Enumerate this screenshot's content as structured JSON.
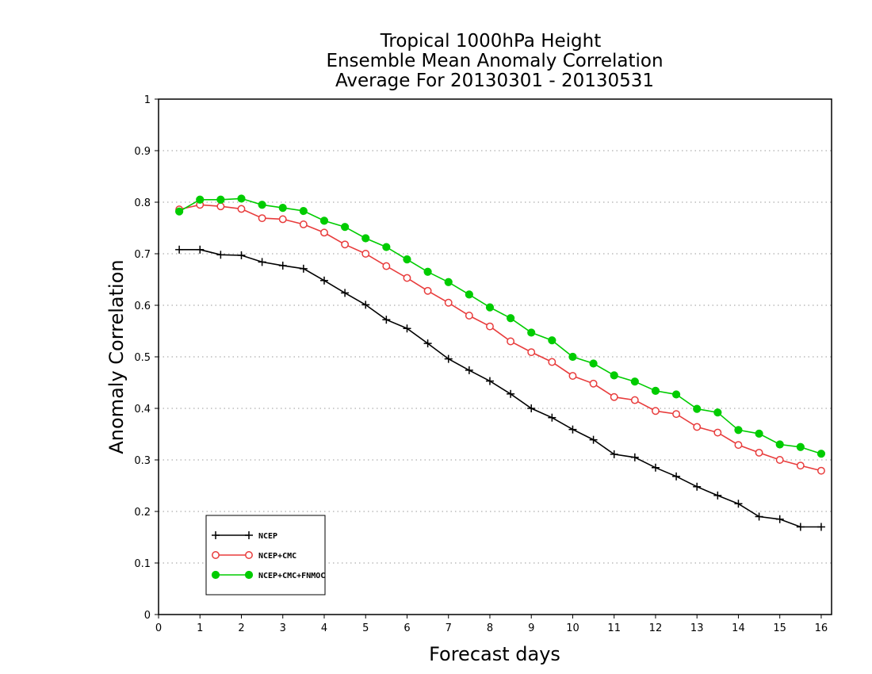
{
  "chart_data": {
    "type": "line",
    "title": [
      "Tropical 1000hPa Height",
      "Ensemble Mean Anomaly Correlation",
      "Average For 20130301 - 20130531"
    ],
    "xlabel": "Forecast days",
    "ylabel": "Anomaly Correlation",
    "xlim": [
      0,
      16.25
    ],
    "ylim": [
      0,
      1
    ],
    "xticks": [
      0,
      1,
      2,
      3,
      4,
      5,
      6,
      7,
      8,
      9,
      10,
      11,
      12,
      13,
      14,
      15,
      16
    ],
    "yticks": [
      0,
      0.1,
      0.2,
      0.3,
      0.4,
      0.5,
      0.6,
      0.7,
      0.8,
      0.9,
      1
    ],
    "ytick_labels": [
      "0",
      "0.1",
      "0.2",
      "0.3",
      "0.4",
      "0.5",
      "0.6",
      "0.7",
      "0.8",
      "0.9",
      "1"
    ],
    "grid": "horizontal dotted",
    "legend_position": "bottom-left",
    "x": [
      0.5,
      1,
      1.5,
      2,
      2.5,
      3,
      3.5,
      4,
      4.5,
      5,
      5.5,
      6,
      6.5,
      7,
      7.5,
      8,
      8.5,
      9,
      9.5,
      10,
      10.5,
      11,
      11.5,
      12,
      12.5,
      13,
      13.5,
      14,
      14.5,
      15,
      15.5,
      16
    ],
    "series": [
      {
        "name": "NCEP",
        "color": "#000000",
        "marker": "plus",
        "values": [
          0.708,
          0.708,
          0.698,
          0.697,
          0.684,
          0.677,
          0.671,
          0.648,
          0.624,
          0.601,
          0.572,
          0.555,
          0.526,
          0.496,
          0.474,
          0.453,
          0.428,
          0.4,
          0.382,
          0.359,
          0.339,
          0.311,
          0.305,
          0.285,
          0.268,
          0.248,
          0.231,
          0.215,
          0.19,
          0.185,
          0.17,
          0.17
        ]
      },
      {
        "name": "NCEP+CMC",
        "color": "#e83c3c",
        "marker": "open-circle",
        "values": [
          0.786,
          0.795,
          0.792,
          0.787,
          0.769,
          0.767,
          0.757,
          0.741,
          0.718,
          0.7,
          0.676,
          0.653,
          0.628,
          0.605,
          0.58,
          0.559,
          0.53,
          0.509,
          0.49,
          0.463,
          0.448,
          0.422,
          0.416,
          0.395,
          0.389,
          0.364,
          0.353,
          0.329,
          0.314,
          0.3,
          0.289,
          0.279
        ]
      },
      {
        "name": "NCEP+CMC+FNMOC",
        "color": "#00cc00",
        "marker": "filled-circle",
        "values": [
          0.782,
          0.805,
          0.805,
          0.807,
          0.795,
          0.789,
          0.783,
          0.764,
          0.752,
          0.73,
          0.713,
          0.689,
          0.665,
          0.645,
          0.621,
          0.596,
          0.575,
          0.547,
          0.532,
          0.5,
          0.487,
          0.464,
          0.452,
          0.434,
          0.427,
          0.399,
          0.392,
          0.358,
          0.351,
          0.33,
          0.325,
          0.312
        ]
      }
    ]
  }
}
